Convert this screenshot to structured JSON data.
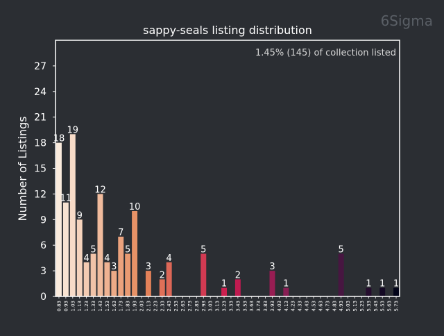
{
  "watermark": "6Sigma",
  "chart_data": {
    "type": "bar",
    "title": "sappy-seals listing distribution",
    "annotation": "1.45% (145) of collection listed",
    "xlabel": "",
    "ylabel": "Number of Listings",
    "ylim": [
      0,
      30
    ],
    "yticks": [
      0,
      3,
      6,
      9,
      12,
      15,
      18,
      21,
      24,
      27
    ],
    "grid": false,
    "categories": [
      "0.83",
      "0.93",
      "1.03",
      "1.13",
      "1.23",
      "1.33",
      "1.43",
      "1.53",
      "1.63",
      "1.73",
      "1.83",
      "1.93",
      "2.03",
      "2.13",
      "2.23",
      "2.33",
      "2.43",
      "2.53",
      "2.63",
      "2.73",
      "2.83",
      "2.93",
      "3.03",
      "3.13",
      "3.23",
      "3.33",
      "3.43",
      "3.53",
      "3.63",
      "3.73",
      "3.83",
      "3.93",
      "4.03",
      "4.13",
      "4.23",
      "4.33",
      "4.43",
      "4.53",
      "4.63",
      "4.73",
      "4.83",
      "4.93",
      "5.03",
      "5.13",
      "5.23",
      "5.33",
      "5.43",
      "5.53",
      "5.63",
      "5.73"
    ],
    "values": [
      18,
      11,
      19,
      9,
      4,
      5,
      12,
      4,
      3,
      7,
      5,
      10,
      0,
      3,
      0,
      2,
      4,
      0,
      0,
      0,
      0,
      5,
      0,
      0,
      1,
      0,
      2,
      0,
      0,
      0,
      0,
      3,
      0,
      1,
      0,
      0,
      0,
      0,
      0,
      0,
      0,
      5,
      0,
      0,
      0,
      1,
      0,
      1,
      0,
      1
    ],
    "colors": {
      "background": "#2b2e33",
      "axes": "#ffffff",
      "palette_light": "#faebdd",
      "palette_mid": "#cb1b4f",
      "palette_dark": "#03051a",
      "watermark": "#5a5f66",
      "annotation": "#d6d6d6"
    }
  }
}
